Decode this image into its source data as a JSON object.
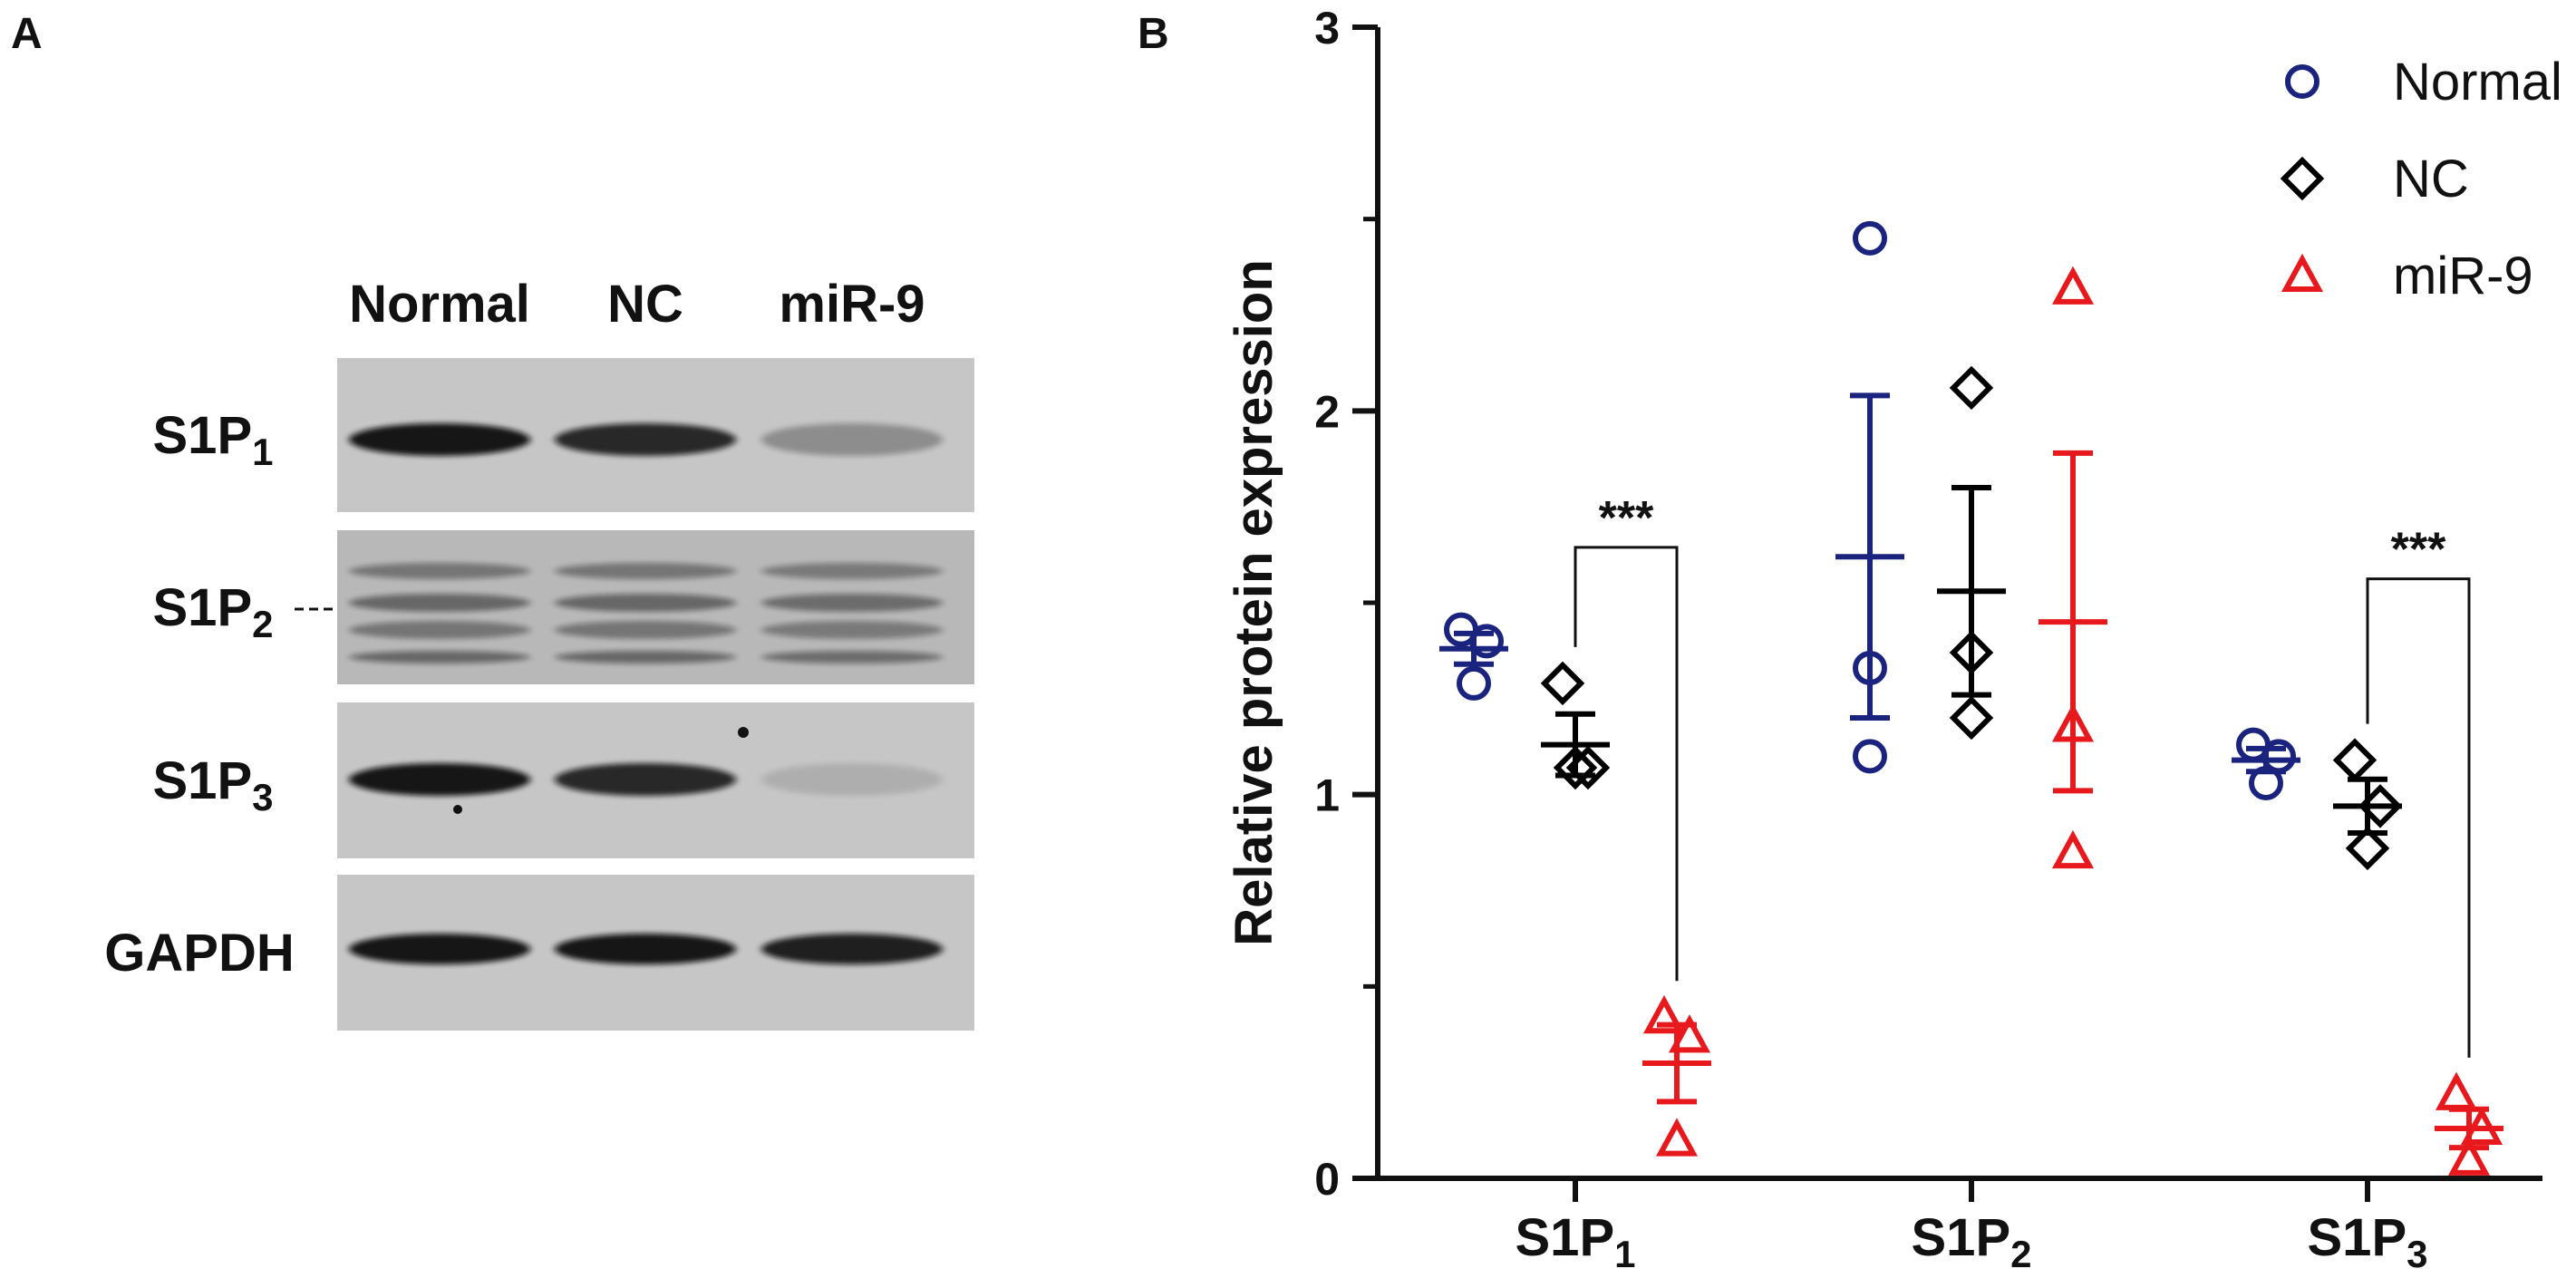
{
  "panel_a": {
    "label": "A",
    "lanes": [
      "Normal",
      "NC",
      "miR-9"
    ],
    "rows": [
      {
        "main": "S1P",
        "sub": "1",
        "band_intensity": [
          0.95,
          0.85,
          0.3
        ]
      },
      {
        "main": "S1P",
        "sub": "2",
        "band_intensity": [
          0.7,
          0.7,
          0.65
        ]
      },
      {
        "main": "S1P",
        "sub": "3",
        "band_intensity": [
          0.95,
          0.85,
          0.12
        ]
      },
      {
        "main": "GAPDH",
        "sub": "",
        "band_intensity": [
          0.95,
          0.95,
          0.9
        ]
      }
    ]
  },
  "panel_b": {
    "label": "B",
    "colors": {
      "Normal": "#1a237e",
      "NC": "#000000",
      "miR-9": "#e8191c"
    },
    "legend": [
      {
        "name": "Normal",
        "marker": "circle"
      },
      {
        "name": "NC",
        "marker": "diamond"
      },
      {
        "name": "miR-9",
        "marker": "triangle"
      }
    ],
    "significance": [
      {
        "text": "***",
        "group_index": 0,
        "from": "NC",
        "to": "miR-9"
      },
      {
        "text": "***",
        "group_index": 2,
        "from": "NC",
        "to": "miR-9"
      }
    ]
  },
  "chart_data": {
    "type": "scatter",
    "title": "",
    "ylabel": "Relative protein expression",
    "xlabel": "",
    "ylim": [
      0,
      3
    ],
    "yticks": [
      "0",
      "1",
      "2",
      "3"
    ],
    "categories": [
      {
        "main": "S1P",
        "sub": "1"
      },
      {
        "main": "S1P",
        "sub": "2"
      },
      {
        "main": "S1P",
        "sub": "3"
      }
    ],
    "legend_position": "top-right",
    "series": [
      {
        "name": "Normal",
        "points": [
          [
            1.43,
            1.4,
            1.29
          ],
          [
            2.45,
            1.33,
            1.1
          ],
          [
            1.13,
            1.1,
            1.03
          ]
        ],
        "mean": [
          1.38,
          1.62,
          1.09
        ],
        "sem": [
          0.04,
          0.42,
          0.03
        ]
      },
      {
        "name": "NC",
        "points": [
          [
            1.29,
            1.07,
            1.07
          ],
          [
            2.06,
            1.37,
            1.2
          ],
          [
            1.09,
            0.97,
            0.86
          ]
        ],
        "mean": [
          1.13,
          1.53,
          0.97
        ],
        "sem": [
          0.08,
          0.27,
          0.07
        ]
      },
      {
        "name": "miR-9",
        "points": [
          [
            0.42,
            0.37,
            0.1
          ],
          [
            2.32,
            1.18,
            0.85
          ],
          [
            0.22,
            0.13,
            0.05
          ]
        ],
        "mean": [
          0.3,
          1.45,
          0.13
        ],
        "sem": [
          0.1,
          0.44,
          0.05
        ]
      }
    ]
  }
}
